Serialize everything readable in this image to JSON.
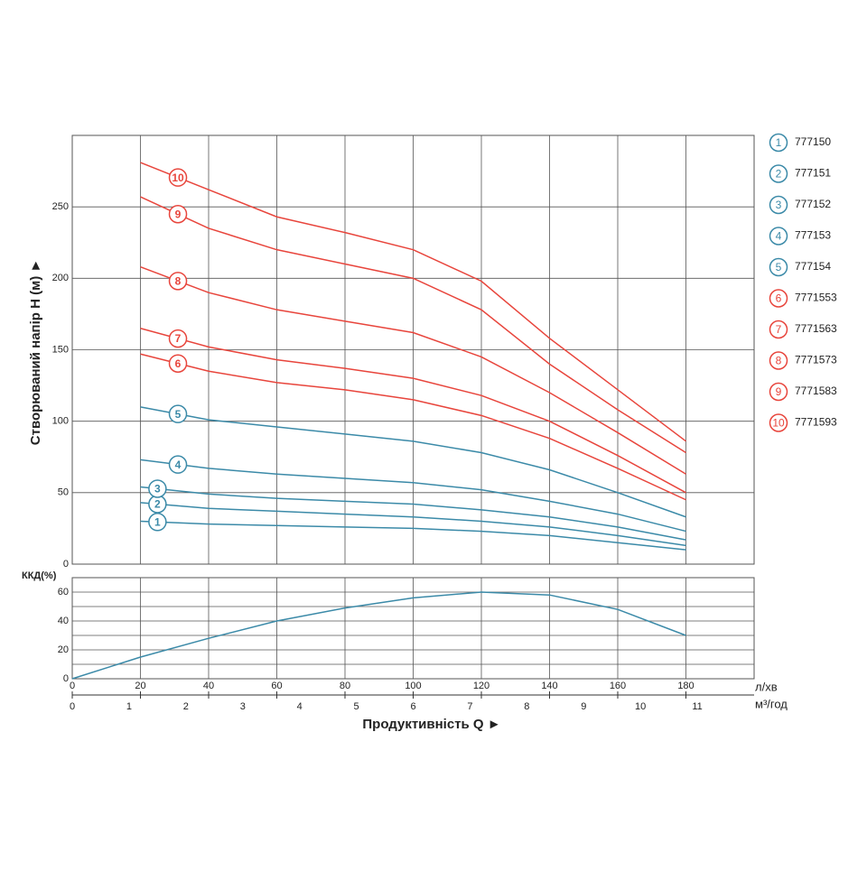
{
  "chart_data": {
    "type": "line",
    "y_title": "Створюваний напір H (м) ►",
    "x_title": "Продуктивність  Q ►",
    "x_unit": "л/хв",
    "x2_unit": "м³/год",
    "xlim": [
      0,
      200
    ],
    "xticks": [
      0,
      20,
      40,
      60,
      80,
      100,
      120,
      140,
      160,
      180
    ],
    "x2lim": [
      0,
      12
    ],
    "x2ticks": [
      0,
      1,
      2,
      3,
      4,
      5,
      6,
      7,
      8,
      9,
      10,
      11
    ],
    "ylim": [
      0,
      300
    ],
    "yticks": [
      0,
      50,
      100,
      150,
      200,
      250
    ],
    "grid": true,
    "x": [
      20,
      40,
      60,
      80,
      100,
      120,
      140,
      160,
      180
    ],
    "series": [
      {
        "label": "1",
        "name": "777150",
        "color": "#3b8aa8",
        "values": [
          30,
          28,
          27,
          26,
          25,
          23,
          20,
          15,
          10
        ]
      },
      {
        "label": "2",
        "name": "777151",
        "color": "#3b8aa8",
        "values": [
          43,
          39,
          37,
          35,
          33,
          30,
          26,
          20,
          13
        ]
      },
      {
        "label": "3",
        "name": "777152",
        "color": "#3b8aa8",
        "values": [
          54,
          49,
          46,
          44,
          42,
          38,
          33,
          26,
          17
        ]
      },
      {
        "label": "4",
        "name": "777153",
        "color": "#3b8aa8",
        "values": [
          73,
          67,
          63,
          60,
          57,
          52,
          44,
          35,
          23
        ]
      },
      {
        "label": "5",
        "name": "777154",
        "color": "#3b8aa8",
        "values": [
          110,
          101,
          96,
          91,
          86,
          78,
          66,
          50,
          33
        ]
      },
      {
        "label": "6",
        "name": "7771553",
        "color": "#e8453c",
        "values": [
          147,
          135,
          127,
          122,
          115,
          104,
          88,
          67,
          45
        ]
      },
      {
        "label": "7",
        "name": "7771563",
        "color": "#e8453c",
        "values": [
          165,
          152,
          143,
          137,
          130,
          118,
          100,
          76,
          50
        ]
      },
      {
        "label": "8",
        "name": "7771573",
        "color": "#e8453c",
        "values": [
          208,
          190,
          178,
          170,
          162,
          145,
          120,
          92,
          63
        ]
      },
      {
        "label": "9",
        "name": "7771583",
        "color": "#e8453c",
        "values": [
          257,
          235,
          220,
          210,
          200,
          178,
          140,
          108,
          78
        ]
      },
      {
        "label": "10",
        "name": "7771593",
        "color": "#e8453c",
        "values": [
          281,
          262,
          243,
          232,
          220,
          198,
          158,
          122,
          86
        ]
      }
    ],
    "efficiency": {
      "title": "ККД(%)",
      "color": "#3b8aa8",
      "x": [
        0,
        20,
        40,
        60,
        80,
        100,
        120,
        140,
        160,
        180
      ],
      "values": [
        0,
        15,
        28,
        40,
        49,
        56,
        60,
        58,
        48,
        30
      ],
      "ylim": [
        0,
        70
      ],
      "yticks": [
        0,
        20,
        40,
        60
      ],
      "minor_grid": [
        10,
        30,
        50
      ]
    }
  }
}
